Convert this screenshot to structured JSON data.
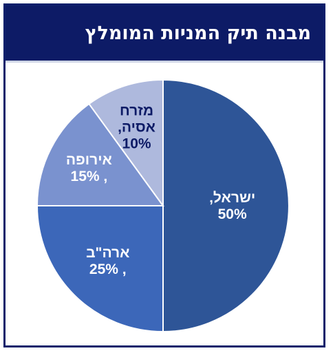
{
  "title": "מבנה תיק המניות המומלץ",
  "chart_data": {
    "type": "pie",
    "title": "מבנה תיק המניות המומלץ",
    "slices": [
      {
        "name": "ישראל",
        "value": 50,
        "color": "#2e5597",
        "text_color": "#ffffff",
        "label_lines": [
          "ישראל,",
          "50%"
        ]
      },
      {
        "name": "ארה\"ב",
        "value": 25,
        "color": "#3c67b9",
        "text_color": "#ffffff",
        "label_lines": [
          "ארה\"ב",
          "25% ,"
        ]
      },
      {
        "name": "אירופה",
        "value": 15,
        "color": "#7a92cf",
        "text_color": "#ffffff",
        "label_lines": [
          "אירופה",
          "15% ,"
        ]
      },
      {
        "name": "מזרח אסיה",
        "value": 10,
        "color": "#aeb9dd",
        "text_color": "#0d1b66",
        "label_lines": [
          "מזרח",
          "אסיה,",
          "10%"
        ]
      }
    ],
    "start_angle_deg": 0,
    "direction": "clockwise",
    "slice_border_color": "#ffffff",
    "legend": "none"
  }
}
